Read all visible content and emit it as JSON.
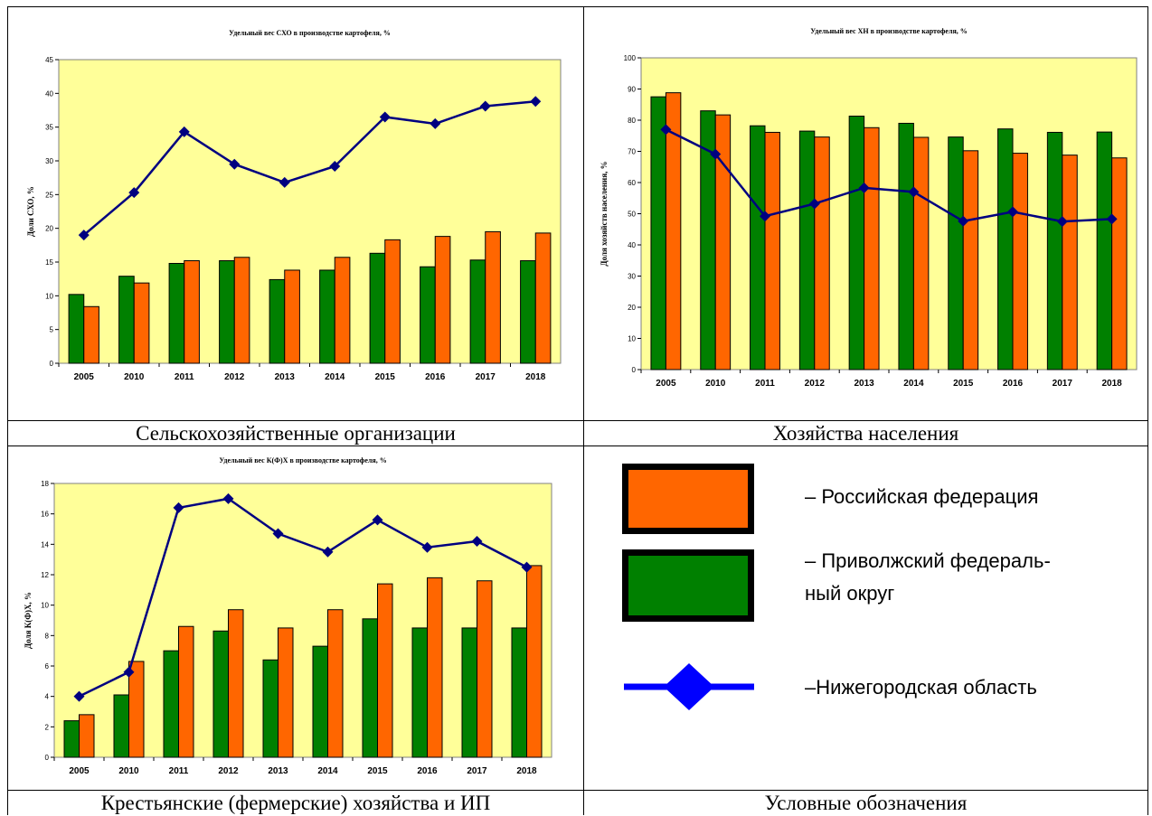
{
  "captions": {
    "top_left": "Сельскохозяйственные организации",
    "top_right": "Хозяйства населения",
    "bottom_left": "Крестьянские (фермерские) хозяйства и ИП",
    "bottom_right": "Условные обозначения"
  },
  "legend": {
    "russia": "– Российская федерация",
    "volga_line1": "– Приволжский федераль-",
    "volga_line2": "ный округ",
    "nizhny": "–Нижегородская область"
  },
  "colors": {
    "plot_bg": "#ffff99",
    "volga": "#008000",
    "russia": "#ff6600",
    "nizhny": "#000080",
    "legend_line": "#0000ff"
  },
  "chart_data": [
    {
      "type": "bar",
      "title": "Удельный вес СХО в производстве картофеля, %",
      "ylabel": "Доли СХО, %",
      "categories": [
        "2005",
        "2010",
        "2011",
        "2012",
        "2013",
        "2014",
        "2015",
        "2016",
        "2017",
        "2018"
      ],
      "ylim": [
        0,
        45
      ],
      "yticks": [
        "0",
        "5",
        "10",
        "15",
        "20",
        "25",
        "30",
        "35",
        "40",
        "45"
      ],
      "grid": false,
      "series": [
        {
          "key": "volga",
          "type": "bar",
          "values": [
            10.2,
            12.9,
            14.8,
            15.2,
            12.4,
            13.8,
            16.3,
            14.3,
            15.3,
            15.2
          ]
        },
        {
          "key": "russia",
          "type": "bar",
          "values": [
            8.4,
            11.9,
            15.2,
            15.7,
            13.8,
            15.7,
            18.3,
            18.8,
            19.5,
            19.3
          ]
        },
        {
          "key": "nizhny",
          "type": "line",
          "values": [
            19.0,
            25.3,
            34.3,
            29.5,
            26.8,
            29.2,
            36.5,
            35.5,
            38.1,
            38.8
          ]
        }
      ]
    },
    {
      "type": "bar",
      "title": "Удельный вес ХН в производстве картофеля, %",
      "ylabel": "Доля хозяйств населения, %",
      "categories": [
        "2005",
        "2010",
        "2011",
        "2012",
        "2013",
        "2014",
        "2015",
        "2016",
        "2017",
        "2018"
      ],
      "ylim": [
        0,
        100
      ],
      "yticks": [
        "0",
        "10",
        "20",
        "30",
        "40",
        "50",
        "60",
        "70",
        "80",
        "90",
        "100"
      ],
      "grid": false,
      "series": [
        {
          "key": "volga",
          "type": "bar",
          "values": [
            87.5,
            83.0,
            78.2,
            76.5,
            81.3,
            79.0,
            74.6,
            77.2,
            76.1,
            76.2
          ]
        },
        {
          "key": "russia",
          "type": "bar",
          "values": [
            88.8,
            81.7,
            76.1,
            74.6,
            77.6,
            74.5,
            70.2,
            69.4,
            68.8,
            67.9
          ]
        },
        {
          "key": "nizhny",
          "type": "line",
          "values": [
            77.0,
            69.1,
            49.2,
            53.2,
            58.3,
            57.0,
            47.6,
            50.6,
            47.5,
            48.3
          ]
        }
      ]
    },
    {
      "type": "bar",
      "title": "Удельный вес К(Ф)Х в производстве картофеля, %",
      "ylabel": "Доля К(Ф)Х, %",
      "categories": [
        "2005",
        "2010",
        "2011",
        "2012",
        "2013",
        "2014",
        "2015",
        "2016",
        "2017",
        "2018"
      ],
      "ylim": [
        0,
        18
      ],
      "yticks": [
        "0",
        "2",
        "4",
        "6",
        "8",
        "10",
        "12",
        "14",
        "16",
        "18"
      ],
      "grid": false,
      "series": [
        {
          "key": "volga",
          "type": "bar",
          "values": [
            2.4,
            4.1,
            7.0,
            8.3,
            6.4,
            7.3,
            9.1,
            8.5,
            8.5,
            8.5
          ]
        },
        {
          "key": "russia",
          "type": "bar",
          "values": [
            2.8,
            6.3,
            8.6,
            9.7,
            8.5,
            9.7,
            11.4,
            11.8,
            11.6,
            12.6
          ]
        },
        {
          "key": "nizhny",
          "type": "line",
          "values": [
            4.0,
            5.6,
            16.4,
            17.0,
            14.7,
            13.5,
            15.6,
            13.8,
            14.2,
            12.5
          ]
        }
      ]
    }
  ]
}
